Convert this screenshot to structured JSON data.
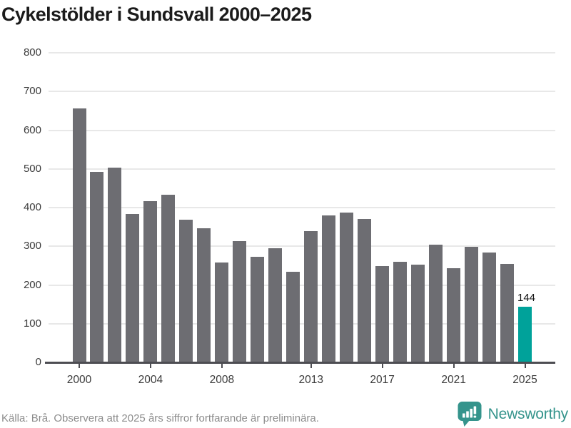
{
  "title": "Cykelstölder i Sundsvall 2000–2025",
  "chart_data": {
    "type": "bar",
    "x": [
      2000,
      2001,
      2002,
      2003,
      2004,
      2005,
      2006,
      2007,
      2008,
      2009,
      2010,
      2011,
      2012,
      2013,
      2014,
      2015,
      2016,
      2017,
      2018,
      2019,
      2020,
      2021,
      2022,
      2023,
      2024,
      2025
    ],
    "values": [
      657,
      492,
      504,
      383,
      417,
      433,
      368,
      346,
      258,
      314,
      273,
      295,
      234,
      339,
      380,
      387,
      371,
      249,
      259,
      252,
      304,
      243,
      299,
      283,
      254,
      144
    ],
    "title": "Cykelstölder i Sundsvall 2000–2025",
    "xlabel": "",
    "ylabel": "",
    "ylim": [
      0,
      800
    ],
    "yticks": [
      0,
      100,
      200,
      300,
      400,
      500,
      600,
      700,
      800
    ],
    "xticks": [
      2000,
      2004,
      2008,
      2013,
      2017,
      2021,
      2025
    ],
    "grid": true,
    "legend": "none",
    "bar_color": "#6d6d72",
    "highlight_year": 2025,
    "highlight_color": "#00a29a",
    "highlight_value_label": "144"
  },
  "footer": {
    "source_text": "Källa: Brå. Observera att 2025 års siffror fortfarande är preliminära.",
    "brand_name": "Newsworthy",
    "brand_color": "#35948c"
  }
}
